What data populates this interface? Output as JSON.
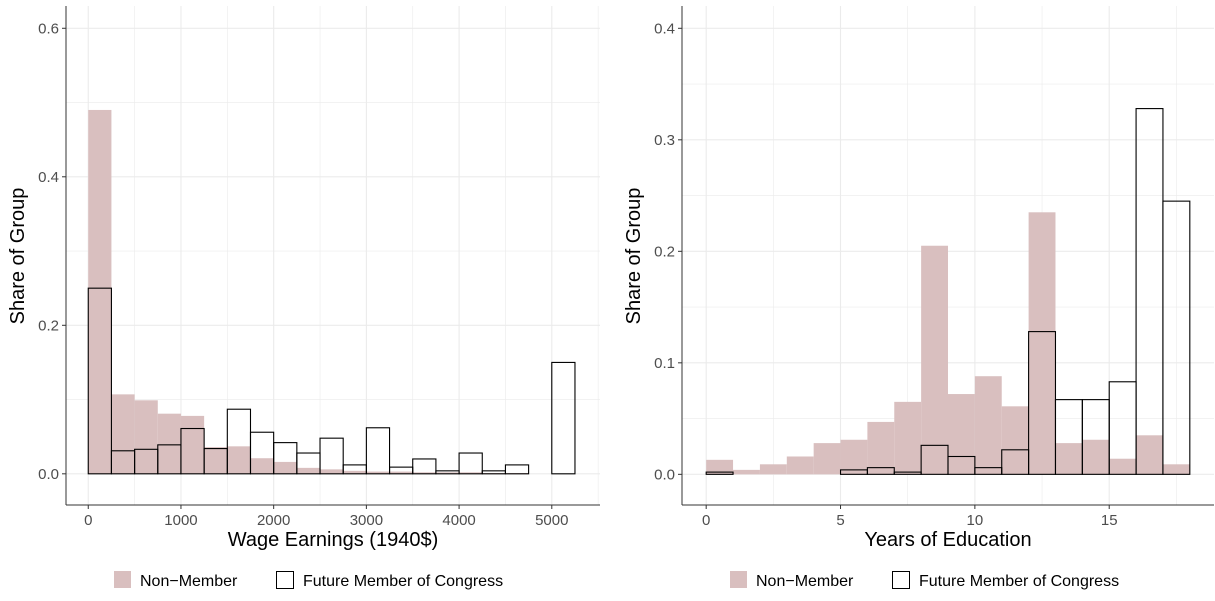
{
  "colors": {
    "non_member_fill": "#d9bfbf",
    "member_outline": "#000000",
    "grid": "#ebebeb",
    "axis_line": "#333333",
    "tick_text": "#4d4d4d"
  },
  "legend": {
    "non_member_label": "Non−Member",
    "member_label": "Future Member of Congress"
  },
  "chart_data": [
    {
      "type": "bar",
      "title": "",
      "xlabel": "Wage Earnings (1940$)",
      "ylabel": "Share of Group",
      "xlim": [
        -240,
        5520
      ],
      "ylim": [
        -0.042,
        0.63
      ],
      "xticks": [
        0,
        1000,
        2000,
        3000,
        4000,
        5000
      ],
      "xtick_labels": [
        "0",
        "1000",
        "2000",
        "3000",
        "4000",
        "5000"
      ],
      "yticks": [
        0,
        0.2,
        0.4,
        0.6
      ],
      "ytick_labels": [
        "0.0",
        "0.2",
        "0.4",
        "0.6"
      ],
      "grid": true,
      "legend_position": "bottom",
      "bin_starts": [
        0,
        250,
        500,
        750,
        1000,
        1250,
        1500,
        1750,
        2000,
        2250,
        2500,
        2750,
        3000,
        3250,
        3500,
        3750,
        4000,
        4250,
        4500,
        5000
      ],
      "bin_width": 250,
      "series": [
        {
          "name": "Non−Member",
          "style": "filled",
          "values": [
            0.49,
            0.107,
            0.099,
            0.081,
            0.078,
            0.036,
            0.037,
            0.021,
            0.016,
            0.008,
            0.006,
            0.004,
            0.003,
            0.003,
            0.002,
            0.002,
            0.002,
            0.001,
            0.001,
            0.0
          ]
        },
        {
          "name": "Future Member of Congress",
          "style": "outline",
          "values": [
            0.25,
            0.031,
            0.033,
            0.039,
            0.061,
            0.034,
            0.087,
            0.056,
            0.042,
            0.028,
            0.048,
            0.012,
            0.062,
            0.009,
            0.02,
            0.004,
            0.028,
            0.004,
            0.012,
            0.15
          ]
        }
      ]
    },
    {
      "type": "bar",
      "title": "",
      "xlabel": "Years of Education",
      "ylabel": "Share of Group",
      "xlim": [
        -0.9,
        18.9
      ],
      "ylim": [
        -0.0275,
        0.42
      ],
      "xticks": [
        0,
        5,
        10,
        15
      ],
      "xtick_labels": [
        "0",
        "5",
        "10",
        "15"
      ],
      "yticks": [
        0,
        0.1,
        0.2,
        0.3,
        0.4
      ],
      "ytick_labels": [
        "0.0",
        "0.1",
        "0.2",
        "0.3",
        "0.4"
      ],
      "grid": true,
      "legend_position": "bottom",
      "bin_starts": [
        0,
        1,
        2,
        3,
        4,
        5,
        6,
        7,
        8,
        9,
        10,
        11,
        12,
        13,
        14,
        15,
        16,
        17
      ],
      "bin_width": 1,
      "series": [
        {
          "name": "Non−Member",
          "style": "filled",
          "values": [
            0.013,
            0.004,
            0.009,
            0.016,
            0.028,
            0.031,
            0.047,
            0.065,
            0.205,
            0.072,
            0.088,
            0.061,
            0.235,
            0.028,
            0.031,
            0.014,
            0.035,
            0.009
          ]
        },
        {
          "name": "Future Member of Congress",
          "style": "outline",
          "values": [
            0.002,
            0.0,
            0.0,
            0.0,
            0.0,
            0.004,
            0.006,
            0.002,
            0.026,
            0.016,
            0.006,
            0.022,
            0.128,
            0.067,
            0.067,
            0.083,
            0.328,
            0.245
          ]
        }
      ]
    }
  ]
}
